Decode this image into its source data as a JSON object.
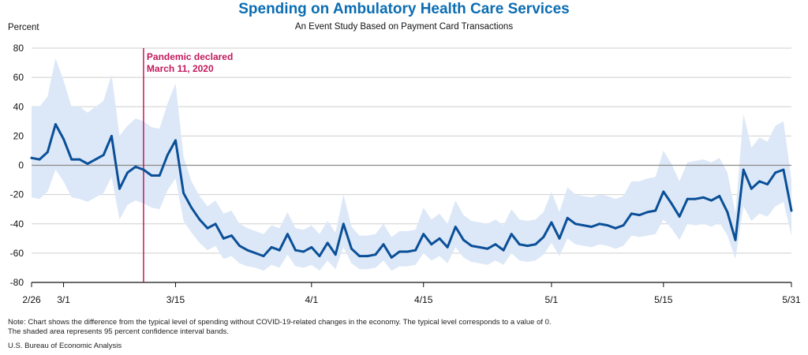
{
  "colors": {
    "title": "#0b6db3",
    "line": "#0a4f98",
    "band": "#dce8f7",
    "event": "#c2185b",
    "grid": "#cfcfcf",
    "zero": "#8a8a8a"
  },
  "title": "Spending on Ambulatory Health Care Services",
  "subtitle": "An Event Study Based on Payment Card Transactions",
  "note_line1": "Note: Chart shows the difference from the typical level of spending without COVID-19-related changes in the economy. The typical level corresponds to a value of 0.",
  "note_line2": "The shaded area represents 95 percent confidence interval bands.",
  "source": "U.S. Bureau of Economic Analysis",
  "chart_data": {
    "type": "line",
    "title": "Spending on Ambulatory Health Care Services",
    "subtitle": "An Event Study Based on Payment Card Transactions",
    "ylabel": "Percent",
    "ylim": [
      -80,
      80
    ],
    "yticks": [
      -80,
      -60,
      -40,
      -20,
      0,
      20,
      40,
      60,
      80
    ],
    "xlim": [
      "2020-02-26",
      "2020-05-31"
    ],
    "xticks": [
      {
        "date": "2020-02-26",
        "label": "2/26"
      },
      {
        "date": "2020-03-01",
        "label": "3/1"
      },
      {
        "date": "2020-03-15",
        "label": "3/15"
      },
      {
        "date": "2020-04-01",
        "label": "4/1"
      },
      {
        "date": "2020-04-15",
        "label": "4/15"
      },
      {
        "date": "2020-05-01",
        "label": "5/1"
      },
      {
        "date": "2020-05-15",
        "label": "5/15"
      },
      {
        "date": "2020-05-31",
        "label": "5/31"
      }
    ],
    "grid": true,
    "event": {
      "date": "2020-03-11",
      "label_line1": "Pandemic declared",
      "label_line2": "March 11, 2020"
    },
    "series": [
      {
        "x": [
          "2020-02-26",
          "2020-02-27",
          "2020-02-28",
          "2020-02-29",
          "2020-03-01",
          "2020-03-02",
          "2020-03-03",
          "2020-03-04",
          "2020-03-05",
          "2020-03-06",
          "2020-03-07",
          "2020-03-08",
          "2020-03-09",
          "2020-03-10",
          "2020-03-11",
          "2020-03-12",
          "2020-03-13",
          "2020-03-14",
          "2020-03-15",
          "2020-03-16",
          "2020-03-17",
          "2020-03-18",
          "2020-03-19",
          "2020-03-20",
          "2020-03-21",
          "2020-03-22",
          "2020-03-23",
          "2020-03-24",
          "2020-03-25",
          "2020-03-26",
          "2020-03-27",
          "2020-03-28",
          "2020-03-29",
          "2020-03-30",
          "2020-03-31",
          "2020-04-01",
          "2020-04-02",
          "2020-04-03",
          "2020-04-04",
          "2020-04-05",
          "2020-04-06",
          "2020-04-07",
          "2020-04-08",
          "2020-04-09",
          "2020-04-10",
          "2020-04-11",
          "2020-04-12",
          "2020-04-13",
          "2020-04-14",
          "2020-04-15",
          "2020-04-16",
          "2020-04-17",
          "2020-04-18",
          "2020-04-19",
          "2020-04-20",
          "2020-04-21",
          "2020-04-22",
          "2020-04-23",
          "2020-04-24",
          "2020-04-25",
          "2020-04-26",
          "2020-04-27",
          "2020-04-28",
          "2020-04-29",
          "2020-04-30",
          "2020-05-01",
          "2020-05-02",
          "2020-05-03",
          "2020-05-04",
          "2020-05-05",
          "2020-05-06",
          "2020-05-07",
          "2020-05-08",
          "2020-05-09",
          "2020-05-10",
          "2020-05-11",
          "2020-05-12",
          "2020-05-13",
          "2020-05-14",
          "2020-05-15",
          "2020-05-16",
          "2020-05-17",
          "2020-05-18",
          "2020-05-19",
          "2020-05-20",
          "2020-05-21",
          "2020-05-22",
          "2020-05-23",
          "2020-05-24",
          "2020-05-25",
          "2020-05-26",
          "2020-05-27",
          "2020-05-28",
          "2020-05-29",
          "2020-05-30",
          "2020-05-31"
        ],
        "values": [
          5,
          4,
          9,
          28,
          18,
          4,
          4,
          1,
          4,
          7,
          20,
          -16,
          -5,
          -1,
          -3,
          -7,
          -7,
          7,
          17,
          -19,
          -29,
          -37,
          -43,
          -40,
          -50,
          -48,
          -55,
          -58,
          -60,
          -62,
          -56,
          -58,
          -47,
          -58,
          -59,
          -56,
          -62,
          -53,
          -61,
          -40,
          -57,
          -62,
          -62,
          -61,
          -54,
          -63,
          -59,
          -59,
          -58,
          -47,
          -54,
          -50,
          -56,
          -42,
          -51,
          -55,
          -56,
          -57,
          -54,
          -58,
          -47,
          -54,
          -55,
          -54,
          -49,
          -39,
          -50,
          -36,
          -40,
          -41,
          -42,
          -40,
          -41,
          -43,
          -41,
          -33,
          -34,
          -32,
          -31,
          -18,
          -26,
          -35,
          -23,
          -23,
          -22,
          -24,
          -21,
          -32,
          -51,
          -3,
          -16,
          -11,
          -13,
          -5,
          -3,
          -31
        ],
        "upper": [
          40,
          40,
          47,
          73,
          58,
          40,
          40,
          36,
          40,
          44,
          62,
          20,
          27,
          32,
          30,
          26,
          25,
          42,
          56,
          6,
          -11,
          -21,
          -28,
          -24,
          -33,
          -31,
          -40,
          -43,
          -45,
          -47,
          -41,
          -43,
          -32,
          -43,
          -44,
          -41,
          -47,
          -38,
          -46,
          -20,
          -42,
          -48,
          -48,
          -47,
          -40,
          -49,
          -45,
          -45,
          -44,
          -29,
          -37,
          -33,
          -40,
          -24,
          -34,
          -38,
          -39,
          -40,
          -37,
          -41,
          -30,
          -37,
          -38,
          -37,
          -32,
          -18,
          -32,
          -15,
          -20,
          -21,
          -22,
          -20,
          -21,
          -23,
          -21,
          -11,
          -11,
          -9,
          -8,
          10,
          1,
          -11,
          2,
          3,
          4,
          2,
          5,
          -5,
          -33,
          35,
          12,
          19,
          16,
          27,
          30,
          -10
        ],
        "lower": [
          -22,
          -23,
          -18,
          -3,
          -11,
          -22,
          -23,
          -25,
          -22,
          -19,
          -8,
          -37,
          -27,
          -24,
          -26,
          -29,
          -30,
          -17,
          -9,
          -38,
          -46,
          -53,
          -58,
          -55,
          -64,
          -62,
          -67,
          -69,
          -70,
          -72,
          -68,
          -70,
          -61,
          -69,
          -70,
          -68,
          -72,
          -65,
          -71,
          -56,
          -67,
          -71,
          -71,
          -70,
          -65,
          -72,
          -69,
          -69,
          -68,
          -60,
          -65,
          -62,
          -67,
          -56,
          -63,
          -66,
          -67,
          -68,
          -65,
          -68,
          -60,
          -65,
          -66,
          -65,
          -61,
          -53,
          -62,
          -50,
          -54,
          -55,
          -56,
          -54,
          -55,
          -57,
          -55,
          -48,
          -49,
          -48,
          -47,
          -37,
          -43,
          -51,
          -40,
          -41,
          -40,
          -42,
          -39,
          -48,
          -64,
          -28,
          -38,
          -33,
          -35,
          -28,
          -25,
          -48
        ]
      }
    ]
  }
}
